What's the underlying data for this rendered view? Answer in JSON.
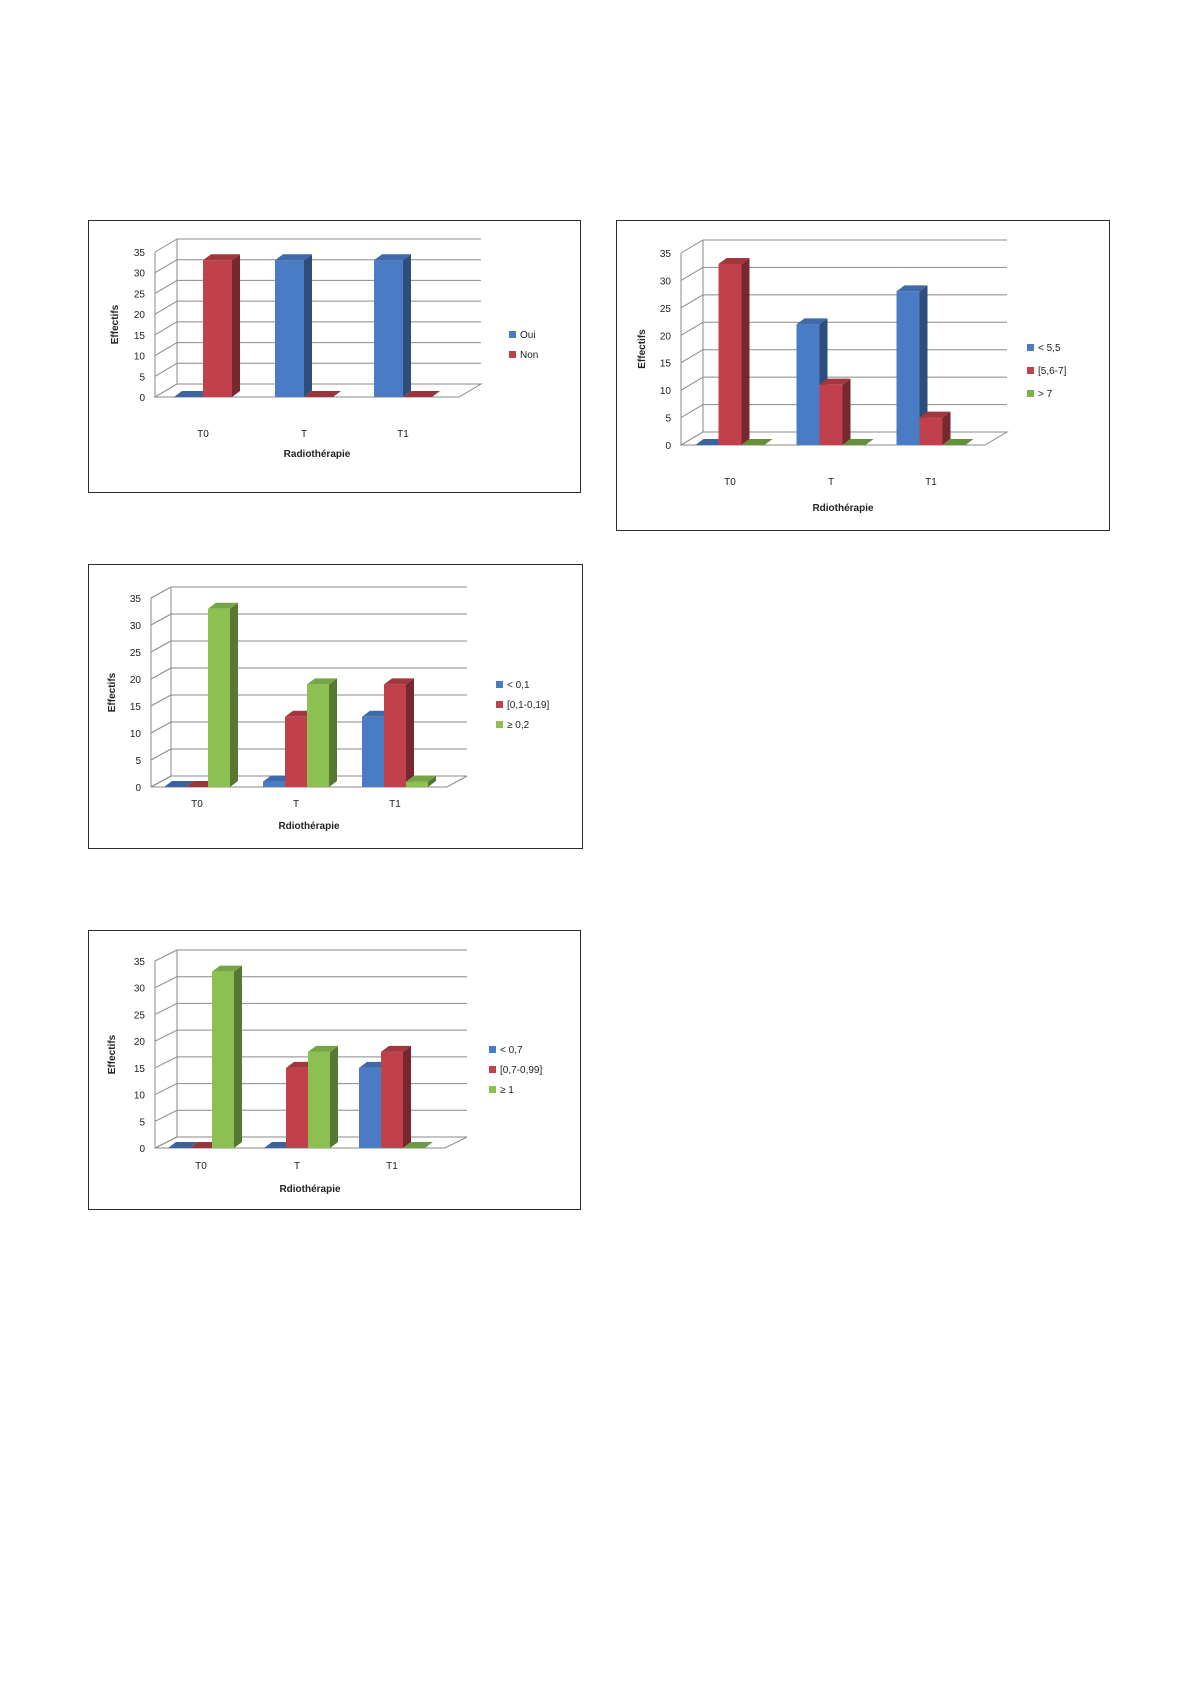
{
  "charts": [
    {
      "id": "chart-1",
      "chart_data": {
        "type": "bar",
        "categories": [
          "T0",
          "T",
          "T1"
        ],
        "series": [
          {
            "name": "Oui",
            "color": "#4a7cc6",
            "values": [
              0,
              33,
              33
            ]
          },
          {
            "name": "Non",
            "color": "#c0414b",
            "values": [
              33,
              0,
              0
            ]
          }
        ],
        "xlabel": "Radiothérapie",
        "ylabel": "Effectifs",
        "ylim": [
          0,
          35
        ],
        "yticks": [
          "0",
          "5",
          "10",
          "15",
          "20",
          "25",
          "30",
          "35"
        ],
        "grid": true,
        "legend": "right"
      }
    },
    {
      "id": "chart-2",
      "chart_data": {
        "type": "bar",
        "categories": [
          "T0",
          "T",
          "T1"
        ],
        "series": [
          {
            "name": "< 5,5",
            "color": "#4a7cc6",
            "values": [
              0,
              22,
              28
            ]
          },
          {
            "name": "[5,6-7]",
            "color": "#c0414b",
            "values": [
              33,
              11,
              5
            ]
          },
          {
            "name": "> 7",
            "color": "#7fb34a",
            "values": [
              0,
              0,
              0
            ]
          }
        ],
        "xlabel": "Rdiothérapie",
        "ylabel": "Effectifs",
        "ylim": [
          0,
          35
        ],
        "yticks": [
          "0",
          "5",
          "10",
          "15",
          "20",
          "25",
          "30",
          "35"
        ],
        "grid": true,
        "legend": "right"
      }
    },
    {
      "id": "chart-3",
      "chart_data": {
        "type": "bar",
        "categories": [
          "T0",
          "T",
          "T1"
        ],
        "series": [
          {
            "name": "< 0,1",
            "color": "#4a7cc6",
            "values": [
              0,
              1,
              13
            ]
          },
          {
            "name": "[0,1-0,19]",
            "color": "#c0414b",
            "values": [
              0,
              13,
              19
            ]
          },
          {
            "name": "≥ 0,2",
            "color": "#8cc152",
            "values": [
              33,
              19,
              1
            ]
          }
        ],
        "xlabel": "Rdiothérapie",
        "ylabel": "Effectifs",
        "ylim": [
          0,
          35
        ],
        "yticks": [
          "0",
          "5",
          "10",
          "15",
          "20",
          "25",
          "30",
          "35"
        ],
        "grid": true,
        "legend": "right"
      }
    },
    {
      "id": "chart-4",
      "chart_data": {
        "type": "bar",
        "categories": [
          "T0",
          "T",
          "T1"
        ],
        "series": [
          {
            "name": "< 0,7",
            "color": "#4a7cc6",
            "values": [
              0,
              0,
              15
            ]
          },
          {
            "name": "[0,7-0,99]",
            "color": "#c0414b",
            "values": [
              0,
              15,
              18
            ]
          },
          {
            "name": "≥ 1",
            "color": "#8cc152",
            "values": [
              33,
              18,
              0
            ]
          }
        ],
        "xlabel": "Rdiothérapie",
        "ylabel": "Effectifs",
        "ylim": [
          0,
          35
        ],
        "yticks": [
          "0",
          "5",
          "10",
          "15",
          "20",
          "25",
          "30",
          "35"
        ],
        "grid": true,
        "legend": "right"
      }
    }
  ]
}
